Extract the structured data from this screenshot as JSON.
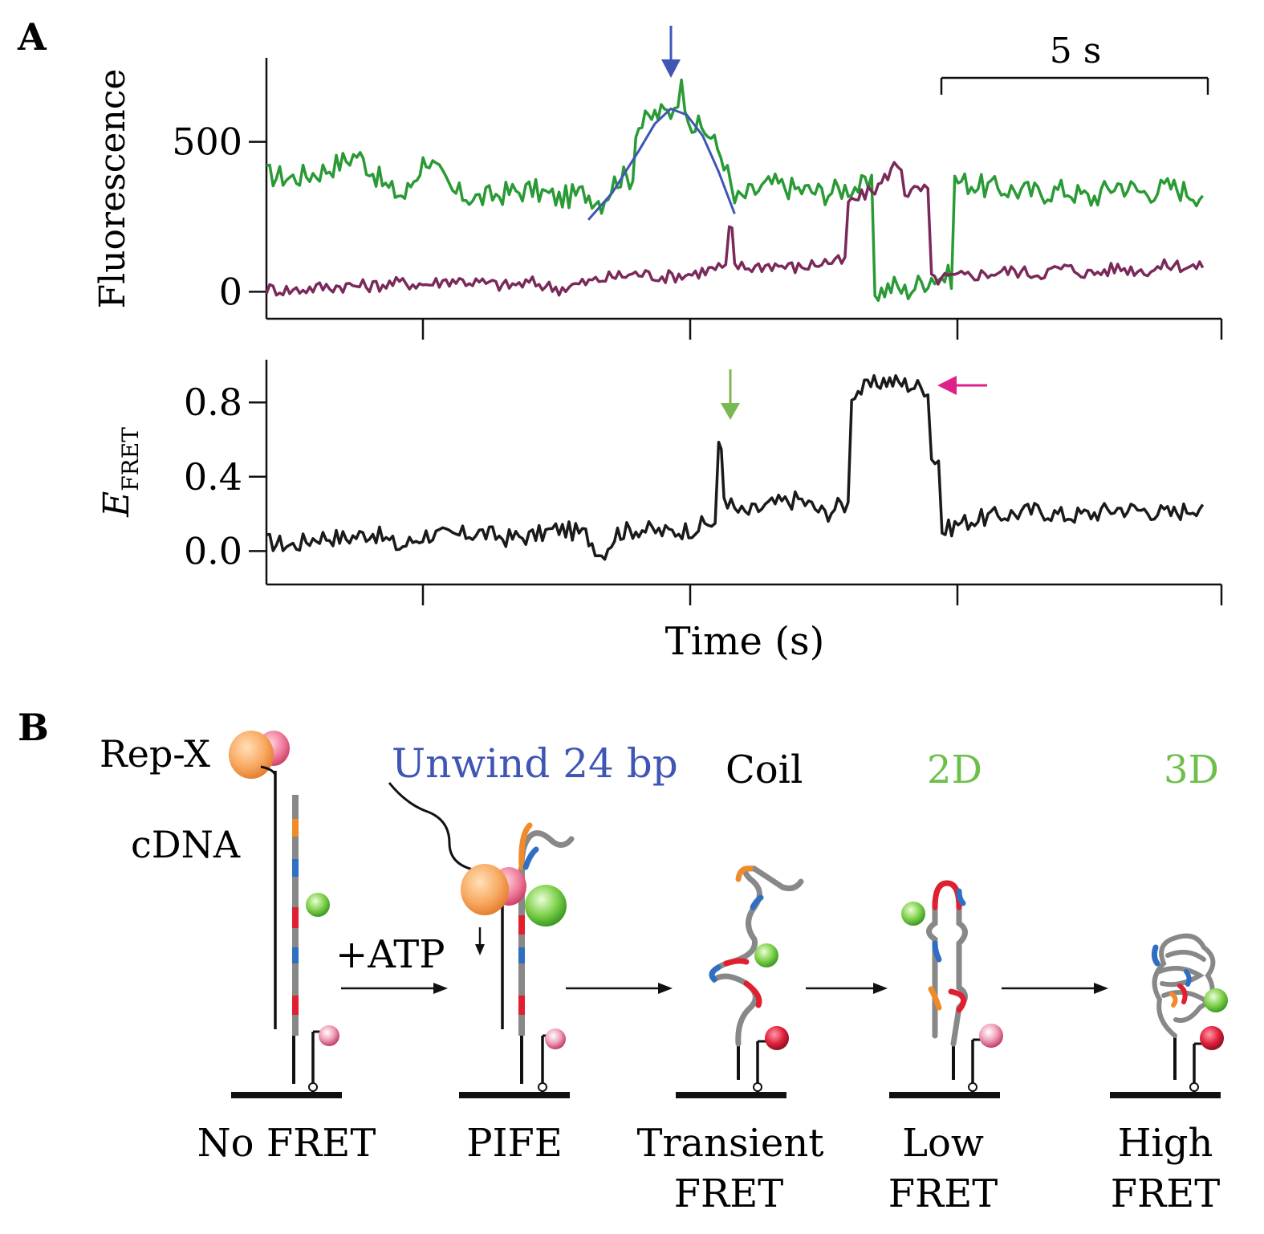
{
  "panel_a": {
    "label": "A",
    "scale_bar_label": "5 s",
    "xlabel": "Time (s)"
  },
  "panel_b": {
    "label": "B",
    "rep_label": "Rep-X",
    "cdna_label": "cDNA",
    "atp_label": "+ATP",
    "step_unwind": "Unwind 24 bp",
    "step_coil": "Coil",
    "step_2d": "2D",
    "step_3d": "3D",
    "state_1": "No FRET",
    "state_2": "PIFE",
    "state_3_line1": "Transient",
    "state_3_line2": "FRET",
    "state_4_line1": "Low",
    "state_4_line2": "FRET",
    "state_5_line1": "High",
    "state_5_line2": "FRET"
  },
  "colors": {
    "donor": "#2a9a35",
    "acceptor": "#7a2a5a",
    "fit": "#3f56b5",
    "efret": "#1a1a1a",
    "blue_arrow": "#3f56b5",
    "green_arrow": "#7ab853",
    "magenta_arrow": "#e0208a",
    "unwind_text": "#3f56b5",
    "green_text": "#6cc04a",
    "orange": "#f08a2a",
    "blue_seg": "#2e6fc4",
    "red_seg": "#e02030"
  },
  "chart_data": [
    {
      "type": "line",
      "ylabel": "Fluorescence",
      "yticks": [
        0,
        500
      ],
      "ylim": [
        -90,
        780
      ],
      "xlim": [
        0,
        17.8
      ],
      "series": [
        {
          "role": "donor",
          "x": [
            0,
            0.5,
            1.0,
            1.5,
            1.7,
            2.0,
            2.3,
            2.6,
            3.0,
            3.5,
            4.0,
            4.5,
            5.0,
            5.5,
            6.0,
            6.3,
            6.6,
            7.0,
            7.3,
            7.6,
            7.8,
            8.0,
            8.3,
            8.6,
            8.8,
            9.0,
            9.5,
            10.0,
            10.5,
            11.0,
            11.5,
            11.8,
            12.0,
            12.5,
            13.0,
            13.5,
            14.0,
            14.5,
            15.0,
            15.5,
            16.0,
            16.5,
            17.0,
            17.6
          ],
          "y": [
            390,
            380,
            400,
            440,
            460,
            400,
            340,
            320,
            450,
            330,
            310,
            330,
            340,
            310,
            330,
            300,
            380,
            550,
            590,
            600,
            680,
            560,
            530,
            440,
            300,
            320,
            360,
            340,
            330,
            350,
            0,
            20,
            0,
            50,
            370,
            350,
            340,
            330,
            340,
            310,
            360,
            330,
            350,
            320
          ]
        },
        {
          "role": "acceptor",
          "x": [
            0,
            0.5,
            1.0,
            1.5,
            2.0,
            2.5,
            3.0,
            3.5,
            4.0,
            4.5,
            5.0,
            5.5,
            6.0,
            6.5,
            7.0,
            7.5,
            8.0,
            8.5,
            8.7,
            8.8,
            9.0,
            9.5,
            10.0,
            10.5,
            11.0,
            11.5,
            11.8,
            12.0,
            12.3,
            12.5,
            13.0,
            13.5,
            14.0,
            14.5,
            15.0,
            15.5,
            16.0,
            16.5,
            17.0,
            17.6
          ],
          "y": [
            10,
            5,
            15,
            20,
            20,
            30,
            25,
            40,
            30,
            20,
            30,
            10,
            30,
            50,
            60,
            50,
            60,
            80,
            200,
            90,
            80,
            90,
            80,
            100,
            300,
            350,
            420,
            330,
            340,
            40,
            50,
            60,
            70,
            60,
            80,
            60,
            80,
            70,
            90,
            80
          ]
        },
        {
          "role": "fit",
          "x": [
            6.05,
            6.5,
            7.0,
            7.3,
            7.6,
            7.9,
            8.2,
            8.5,
            8.8
          ],
          "y": [
            240,
            330,
            470,
            560,
            610,
            590,
            520,
            400,
            260
          ]
        }
      ]
    },
    {
      "type": "line",
      "ylabel": "E",
      "ylabel_sub": "FRET",
      "yticks": [
        0.0,
        0.4,
        0.8
      ],
      "ytick_labels": [
        "0.0",
        "0.4",
        "0.8"
      ],
      "ylim": [
        -0.18,
        1.03
      ],
      "xlim": [
        0,
        17.8
      ],
      "series": [
        {
          "role": "efret",
          "x": [
            0,
            0.5,
            1.0,
            1.5,
            2.0,
            2.5,
            3.0,
            3.5,
            4.0,
            4.5,
            5.0,
            5.5,
            6.0,
            6.3,
            6.6,
            7.0,
            7.5,
            8.0,
            8.3,
            8.5,
            8.6,
            8.8,
            9.0,
            9.5,
            10.0,
            10.5,
            10.8,
            11.0,
            11.3,
            11.6,
            12.0,
            12.3,
            12.5,
            12.7,
            13.0,
            13.5,
            14.0,
            14.5,
            15.0,
            15.5,
            16.0,
            16.5,
            17.0,
            17.6
          ],
          "y": [
            0.05,
            0.03,
            0.08,
            0.07,
            0.1,
            0.02,
            0.09,
            0.08,
            0.1,
            0.07,
            0.08,
            0.12,
            0.09,
            -0.02,
            0.1,
            0.12,
            0.1,
            0.12,
            0.15,
            0.55,
            0.3,
            0.22,
            0.2,
            0.25,
            0.28,
            0.2,
            0.25,
            0.85,
            0.88,
            0.92,
            0.9,
            0.88,
            0.5,
            0.1,
            0.15,
            0.18,
            0.2,
            0.22,
            0.19,
            0.2,
            0.23,
            0.22,
            0.2,
            0.25
          ]
        }
      ]
    }
  ]
}
